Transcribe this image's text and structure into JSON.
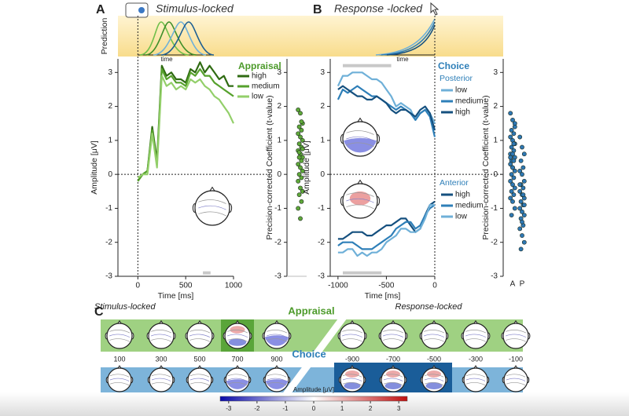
{
  "panels": {
    "a": "A",
    "b": "B",
    "c": "C"
  },
  "prediction": {
    "label": "Prediction",
    "time_label": "time"
  },
  "chart_data": [
    {
      "type": "line",
      "title": "Stimulus-locked",
      "xlabel": "Time [ms]",
      "ylabel": "Amplitude [μV]",
      "xlim": [
        -200,
        1000
      ],
      "xticks": [
        0,
        500,
        1000
      ],
      "ylim": [
        -3,
        3.4
      ],
      "yticks": [
        -3,
        -2,
        -1,
        0,
        1,
        2,
        3
      ],
      "legend_title": "Appraisal",
      "x": [
        0,
        50,
        100,
        150,
        200,
        250,
        300,
        350,
        400,
        450,
        500,
        550,
        600,
        650,
        700,
        750,
        800,
        850,
        900,
        950,
        1000
      ],
      "series": [
        {
          "name": "high",
          "color": "#2f6b12",
          "values": [
            -0.2,
            0,
            0.1,
            1.4,
            0.4,
            3.2,
            2.9,
            3.0,
            2.8,
            2.8,
            2.7,
            3.1,
            3.0,
            3.3,
            3.0,
            3.2,
            3.0,
            2.8,
            2.9,
            2.6,
            2.6
          ]
        },
        {
          "name": "medium",
          "color": "#56a12c",
          "values": [
            -0.2,
            0,
            0.1,
            1.3,
            0.3,
            3.1,
            2.8,
            2.9,
            2.7,
            2.7,
            2.6,
            3.0,
            2.9,
            3.1,
            2.9,
            2.9,
            2.7,
            2.6,
            2.5,
            2.4,
            2.3
          ]
        },
        {
          "name": "low",
          "color": "#93cf6a",
          "values": [
            -0.1,
            0,
            0.0,
            1.2,
            0.2,
            2.9,
            2.6,
            2.7,
            2.5,
            2.6,
            2.5,
            2.8,
            2.7,
            2.8,
            2.6,
            2.5,
            2.3,
            2.2,
            2.0,
            1.8,
            1.5
          ]
        }
      ],
      "sig_spans": [
        {
          "x": [
            680,
            760
          ],
          "y": -2.9
        }
      ]
    },
    {
      "type": "strip",
      "ylabel": "Precision-corrected Coefficient (t-value)",
      "ylim": [
        -3,
        3.4
      ],
      "yticks": [
        -3,
        -2,
        -1,
        0,
        1,
        2,
        3
      ],
      "color": "#5fa83a",
      "values": [
        1.9,
        1.8,
        1.5,
        1.4,
        1.3,
        1.2,
        1.1,
        1.0,
        0.9,
        0.8,
        0.7,
        0.6,
        0.5,
        0.5,
        0.4,
        0.3,
        0.2,
        0.1,
        0.0,
        -0.1,
        -0.2,
        -0.4,
        -0.5,
        -0.6,
        -0.8,
        -1.0,
        -1.3,
        0.75,
        0.65,
        1.55
      ]
    },
    {
      "type": "line",
      "title": "Response -locked",
      "xlabel": "Time [ms]",
      "ylabel": "Amplitude [μV]",
      "xlim": [
        -1080,
        0
      ],
      "xticks": [
        -1000,
        -500,
        0
      ],
      "ylim": [
        -3,
        3.4
      ],
      "yticks": [
        -3,
        -2,
        -1,
        0,
        1,
        2,
        3
      ],
      "legend_title": "Choice",
      "x": [
        -1000,
        -950,
        -900,
        -850,
        -800,
        -750,
        -700,
        -650,
        -600,
        -550,
        -500,
        -450,
        -400,
        -350,
        -300,
        -250,
        -200,
        -150,
        -100,
        -50,
        0
      ],
      "groups": [
        {
          "name": "Posterior",
          "series": [
            {
              "name": "low",
              "color": "#6fb0d8",
              "values": [
                2.6,
                2.9,
                2.9,
                3.0,
                3.0,
                3.0,
                2.9,
                2.8,
                2.8,
                2.7,
                2.5,
                2.3,
                2.0,
                2.1,
                2.0,
                1.9,
                1.6,
                1.8,
                1.9,
                1.8,
                1.5
              ]
            },
            {
              "name": "medium",
              "color": "#2e7fb8",
              "values": [
                2.2,
                2.5,
                2.4,
                2.5,
                2.6,
                2.5,
                2.4,
                2.3,
                2.3,
                2.2,
                2.1,
                2.0,
                1.9,
                2.0,
                1.9,
                1.8,
                1.6,
                1.8,
                1.9,
                1.7,
                1.1
              ]
            },
            {
              "name": "high",
              "color": "#15507f",
              "values": [
                2.5,
                2.6,
                2.5,
                2.4,
                2.3,
                2.3,
                2.2,
                2.2,
                2.3,
                2.2,
                2.1,
                1.9,
                1.8,
                1.9,
                1.9,
                1.8,
                1.7,
                1.9,
                2.0,
                1.8,
                1.3
              ]
            }
          ]
        },
        {
          "name": "Anterior",
          "series": [
            {
              "name": "high",
              "color": "#15507f",
              "values": [
                -1.9,
                -1.9,
                -1.8,
                -1.7,
                -1.7,
                -1.7,
                -1.8,
                -1.8,
                -1.7,
                -1.6,
                -1.5,
                -1.5,
                -1.4,
                -1.3,
                -1.3,
                -1.5,
                -1.7,
                -1.6,
                -1.2,
                -0.9,
                -0.8
              ]
            },
            {
              "name": "medium",
              "color": "#2e7fb8",
              "values": [
                -2.1,
                -2.0,
                -2.0,
                -2.0,
                -2.1,
                -2.2,
                -2.2,
                -2.2,
                -2.1,
                -2.0,
                -1.9,
                -1.8,
                -1.6,
                -1.5,
                -1.4,
                -1.4,
                -1.6,
                -1.5,
                -1.2,
                -1.0,
                -0.9
              ]
            },
            {
              "name": "low",
              "color": "#6fb0d8",
              "values": [
                -2.3,
                -2.3,
                -2.2,
                -2.2,
                -2.4,
                -2.3,
                -2.4,
                -2.3,
                -2.3,
                -2.2,
                -2.0,
                -1.9,
                -1.8,
                -1.6,
                -1.6,
                -1.7,
                -1.7,
                -1.6,
                -1.3,
                -0.9,
                -0.9
              ]
            }
          ]
        }
      ],
      "sig_spans": [
        {
          "x": [
            -950,
            -450
          ],
          "y": 3.2
        },
        {
          "x": [
            -950,
            -550
          ],
          "y": -2.9
        }
      ]
    },
    {
      "type": "strip",
      "ylabel": "Precision-corrected Coefficient (t-value)",
      "ylim": [
        -3,
        3.4
      ],
      "yticks": [
        -3,
        -2,
        -1,
        0,
        1,
        2,
        3
      ],
      "color": "#2f78b4",
      "categories": [
        "A",
        "P"
      ],
      "values": [
        [
          1.8,
          1.6,
          1.4,
          1.3,
          1.2,
          1.1,
          1.0,
          0.9,
          0.8,
          0.7,
          0.6,
          0.6,
          0.5,
          0.4,
          0.4,
          0.3,
          0.2,
          0.1,
          0.0,
          -0.1,
          -0.2,
          -0.3,
          -0.4,
          -0.5,
          -0.6,
          -0.7,
          -0.8,
          -1.0,
          -1.2,
          0.9,
          0.5,
          0.2,
          1.5
        ],
        [
          1.1,
          0.8,
          0.6,
          0.4,
          0.2,
          0.1,
          0.0,
          -0.2,
          -0.3,
          -0.4,
          -0.5,
          -0.6,
          -0.7,
          -0.8,
          -0.9,
          -1.0,
          -1.1,
          -1.2,
          -1.3,
          -1.5,
          -1.6,
          -1.8,
          -2.0,
          -2.2,
          -0.6,
          -0.3,
          -1.4,
          -0.9
        ]
      ]
    },
    {
      "type": "colorbar",
      "label": "Amplitude [μV]",
      "lim": [
        -3.3,
        3.3
      ],
      "ticks": [
        -3,
        -2,
        -1,
        0,
        1,
        2,
        3
      ],
      "colors": [
        "#0a0aa8",
        "#ffffff",
        "#c01010"
      ]
    }
  ],
  "topography": {
    "left_title": "Stimulus-locked",
    "right_title": "Response-locked",
    "rows": [
      "Appraisal",
      "Choice"
    ],
    "left_times": [
      100,
      300,
      500,
      700,
      900
    ],
    "right_times": [
      -900,
      -700,
      -500,
      -300,
      -100
    ]
  }
}
